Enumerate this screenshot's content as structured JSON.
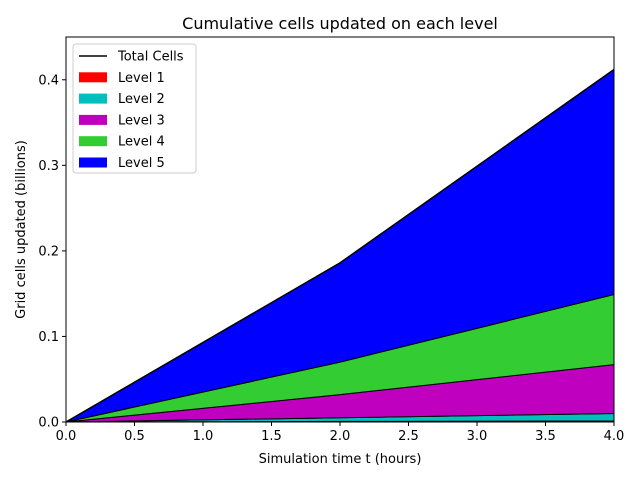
{
  "chart_data": {
    "type": "area",
    "title": "Cumulative cells updated on each level",
    "xlabel": "Simulation time t (hours)",
    "ylabel": "Grid cells updated (billions)",
    "xlim": [
      0.0,
      4.0
    ],
    "ylim": [
      0.0,
      0.45
    ],
    "xticks": [
      "0.0",
      "0.5",
      "1.0",
      "1.5",
      "2.0",
      "2.5",
      "3.0",
      "3.5",
      "4.0"
    ],
    "yticks": [
      "0.0",
      "0.1",
      "0.2",
      "0.3",
      "0.4"
    ],
    "x": [
      0.0,
      2.0,
      4.0
    ],
    "stacked": true,
    "series": [
      {
        "name": "Level 1",
        "color": "#ff0000",
        "values": [
          0.0,
          0.0007,
          0.0013
        ]
      },
      {
        "name": "Level 2",
        "color": "#00bfbf",
        "values": [
          0.0,
          0.0043,
          0.0087
        ]
      },
      {
        "name": "Level 3",
        "color": "#bf00bf",
        "values": [
          0.0,
          0.027,
          0.057
        ]
      },
      {
        "name": "Level 4",
        "color": "#33cc33",
        "values": [
          0.0,
          0.038,
          0.082
        ]
      },
      {
        "name": "Level 5",
        "color": "#0000ff",
        "values": [
          0.0,
          0.116,
          0.263
        ]
      }
    ],
    "total": {
      "name": "Total Cells",
      "color": "#000000",
      "values": [
        0.0,
        0.186,
        0.412
      ]
    },
    "legend": [
      "Total Cells",
      "Level 1",
      "Level 2",
      "Level 3",
      "Level 4",
      "Level 5"
    ],
    "legend_position": "top-left",
    "grid": false
  }
}
